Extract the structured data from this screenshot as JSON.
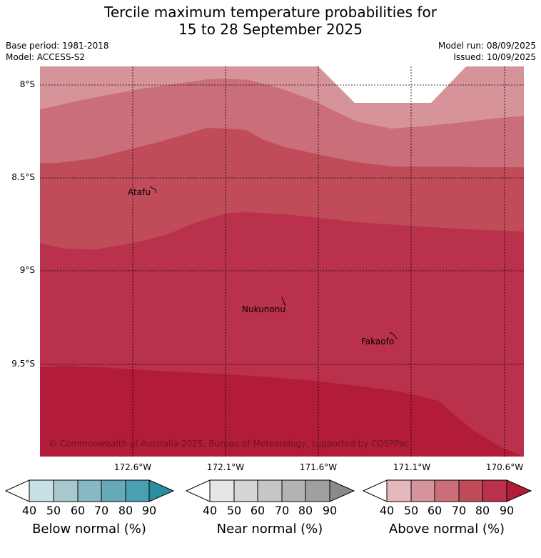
{
  "title_line1": "Tercile maximum temperature probabilities for",
  "title_line2": "15 to 28 September 2025",
  "base_period": "Base period: 1981-2018",
  "model": "Model: ACCESS-S2",
  "model_run": "Model run: 08/09/2025",
  "issued": "Issued: 10/09/2025",
  "lat_labels": [
    "8°S",
    "8.5°S",
    "9°S",
    "9.5°S"
  ],
  "lon_labels": [
    "172.6°W",
    "172.1°W",
    "171.6°W",
    "171.1°W",
    "170.6°W"
  ],
  "places": {
    "atafu": "Atafu",
    "nukunonu": "Nukunonu",
    "fakaofo": "Fakaofo"
  },
  "copyright": "© Commonwealth of Australia 2025, Bureau of Meteorology, supported by COSPPac",
  "colorbars": [
    {
      "title": "Below normal (%)",
      "ticks": [
        "40",
        "50",
        "60",
        "70",
        "80",
        "90"
      ],
      "colors": [
        "#ffffff",
        "#c8e1e7",
        "#a8c8cf",
        "#88b8c5",
        "#68a9b8",
        "#49a0b2",
        "#2a8f9f"
      ]
    },
    {
      "title": "Near normal (%)",
      "ticks": [
        "40",
        "50",
        "60",
        "70",
        "80",
        "90"
      ],
      "colors": [
        "#ffffff",
        "#e6e6e6",
        "#d6d6d6",
        "#c6c6c6",
        "#b3b3b3",
        "#a0a0a0",
        "#8a8a8a"
      ]
    },
    {
      "title": "Above normal (%)",
      "ticks": [
        "40",
        "50",
        "60",
        "70",
        "80",
        "90"
      ],
      "colors": [
        "#ffffff",
        "#e4b8bd",
        "#d6949a",
        "#ca6f79",
        "#c04c5a",
        "#b9314a",
        "#b21c39"
      ]
    }
  ]
}
